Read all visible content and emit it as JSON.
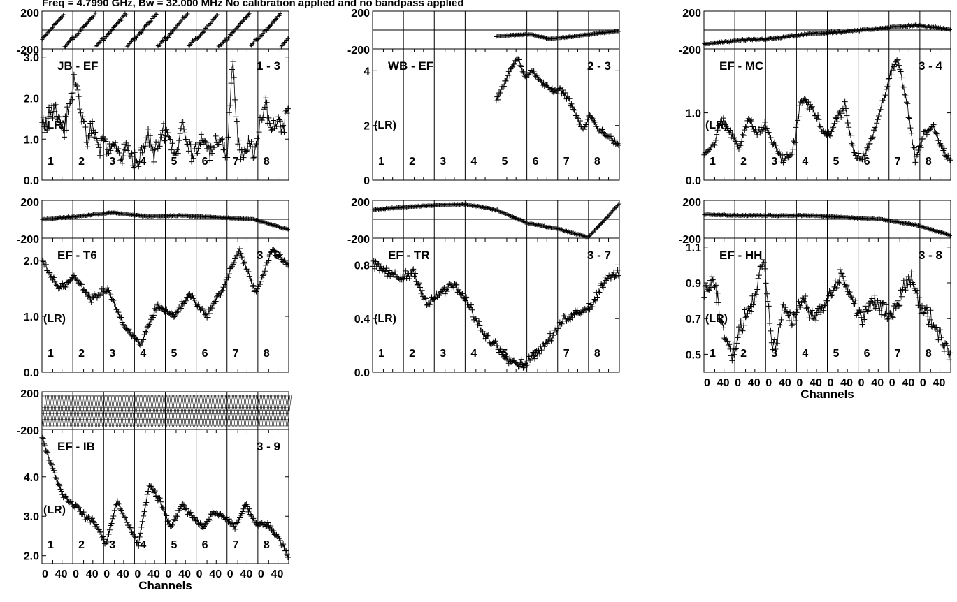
{
  "header": {
    "title": "Freq = 4.7990 GHz, Bw = 32.000 MHz   No calibration applied and no bandpass applied"
  },
  "chart_data": {
    "type": "scatter",
    "xlabel": "Channels",
    "x_tick_labels": [
      "0",
      "40"
    ],
    "x_tick_values": [
      0,
      40
    ],
    "subbands": [
      "1",
      "2",
      "3",
      "4",
      "5",
      "6",
      "7",
      "8"
    ],
    "channels_per_subband": 64,
    "polarization_label": "(LR)",
    "phase_ylim": [
      -200,
      200
    ],
    "phase_ticks": [
      "200",
      "-200"
    ],
    "baselines": [
      {
        "name": "JB - EF",
        "id": "1 - 3",
        "amp_ylim": [
          0,
          3.2
        ],
        "amp_ticks": [
          {
            "v": 0.0,
            "t": "0.0"
          },
          {
            "v": 1.0,
            "t": "1.0"
          },
          {
            "v": 2.0,
            "t": "2.0"
          },
          {
            "v": 3.0,
            "t": "3.0"
          }
        ],
        "amp_profile": [
          1.3,
          1.6,
          1.8,
          1.5,
          1.2,
          1.9,
          2.6,
          1.6,
          0.9,
          1.3,
          0.8,
          1.0,
          0.7,
          0.9,
          0.5,
          0.8,
          0.6,
          0.4,
          0.7,
          1.1,
          0.6,
          1.0,
          1.3,
          0.9,
          0.6,
          1.4,
          0.8,
          0.7,
          0.9,
          1.1,
          0.6,
          0.8,
          1.1,
          0.5,
          3.0,
          0.8,
          0.5,
          0.9,
          0.7,
          1.3,
          1.9,
          1.2,
          1.5,
          1.3,
          1.8
        ],
        "amp_noise": 0.35,
        "phase_mode": "wrap",
        "phase_start": -100,
        "phase_slope": 6.0,
        "phase_noise": 20,
        "phase_coverage": [
          0,
          8
        ]
      },
      {
        "name": "WB - EF",
        "id": "2 - 3",
        "amp_ylim": [
          0,
          4.8
        ],
        "amp_ticks": [
          {
            "v": 0,
            "t": "0"
          },
          {
            "v": 2,
            "t": "2"
          },
          {
            "v": 4,
            "t": "4"
          }
        ],
        "amp_profile": [
          2.9,
          3.5,
          4.0,
          4.5,
          3.8,
          4.0,
          3.6,
          3.5,
          3.2,
          3.3,
          3.0,
          2.4,
          1.8,
          2.4,
          1.9,
          1.7,
          1.5,
          1.2
        ],
        "amp_noise": 0.15,
        "amp_coverage": [
          4,
          8
        ],
        "phase_mode": "drift",
        "phase_start": -70,
        "phase_slope": 0.2,
        "phase_noise": 8,
        "phase_coverage": [
          4,
          8
        ],
        "phase_profile": [
          -65,
          -55,
          -45,
          -95,
          -75,
          -55,
          -30,
          -10
        ]
      },
      {
        "name": "EF - MC",
        "id": "3 - 4",
        "amp_ylim": [
          0,
          1.95
        ],
        "amp_ticks": [
          {
            "v": 0.0,
            "t": "0.0"
          },
          {
            "v": 1.0,
            "t": "1.0"
          }
        ],
        "amp_profile": [
          0.4,
          0.5,
          0.9,
          0.7,
          0.5,
          0.9,
          0.7,
          0.8,
          0.5,
          0.3,
          0.4,
          1.2,
          1.1,
          0.9,
          0.6,
          0.9,
          1.1,
          0.4,
          0.3,
          0.6,
          1.0,
          1.5,
          1.8,
          1.2,
          0.3,
          0.7,
          0.8,
          0.5,
          0.3
        ],
        "amp_noise": 0.1,
        "phase_mode": "drift",
        "phase_start": -150,
        "phase_noise": 15,
        "phase_coverage": [
          0,
          8
        ],
        "phase_profile": [
          -150,
          -110,
          -90,
          -40,
          -20,
          20,
          50,
          10
        ]
      },
      {
        "name": "EF - T6",
        "id": "3 - 6",
        "amp_ylim": [
          0,
          2.4
        ],
        "amp_ticks": [
          {
            "v": 0.0,
            "t": "0.0"
          },
          {
            "v": 1.0,
            "t": "1.0"
          },
          {
            "v": 2.0,
            "t": "2.0"
          }
        ],
        "amp_profile": [
          2.0,
          1.5,
          1.7,
          1.3,
          1.5,
          0.8,
          0.5,
          1.2,
          1.0,
          1.4,
          1.0,
          1.5,
          2.2,
          1.4,
          2.2,
          1.9
        ],
        "amp_noise": 0.08,
        "phase_mode": "drift",
        "phase_start": 0,
        "phase_noise": 8,
        "phase_coverage": [
          0,
          8
        ],
        "phase_profile": [
          0,
          30,
          70,
          30,
          40,
          20,
          0,
          -110
        ]
      },
      {
        "name": "EF - TR",
        "id": "3 - 7",
        "amp_ylim": [
          0,
          1.0
        ],
        "amp_ticks": [
          {
            "v": 0.0,
            "t": "0.0"
          },
          {
            "v": 0.4,
            "t": "0.4"
          },
          {
            "v": 0.8,
            "t": "0.8"
          }
        ],
        "amp_profile": [
          0.8,
          0.75,
          0.7,
          0.75,
          0.5,
          0.6,
          0.65,
          0.5,
          0.3,
          0.2,
          0.1,
          0.05,
          0.15,
          0.25,
          0.4,
          0.45,
          0.5,
          0.7,
          0.75
        ],
        "amp_noise": 0.05,
        "phase_mode": "drift",
        "phase_start": 90,
        "phase_noise": 10,
        "phase_coverage": [
          0,
          8
        ],
        "phase_profile": [
          100,
          130,
          150,
          160,
          100,
          -40,
          -100,
          -190,
          160
        ]
      },
      {
        "name": "EF - HH",
        "id": "3 - 8",
        "amp_ylim": [
          0.4,
          1.15
        ],
        "amp_ticks": [
          {
            "v": 0.5,
            "t": "0.5"
          },
          {
            "v": 0.7,
            "t": "0.7"
          },
          {
            "v": 0.9,
            "t": "0.9"
          },
          {
            "v": 1.1,
            "t": "1.1"
          }
        ],
        "amp_profile": [
          0.85,
          0.9,
          0.6,
          0.5,
          0.7,
          0.8,
          1.05,
          0.5,
          0.75,
          0.7,
          0.8,
          0.7,
          0.75,
          0.85,
          0.95,
          0.8,
          0.7,
          0.8,
          0.75,
          0.7,
          0.85,
          0.95,
          0.75,
          0.7,
          0.6,
          0.5
        ],
        "amp_noise": 0.07,
        "phase_mode": "drift",
        "phase_start": 50,
        "phase_noise": 10,
        "phase_coverage": [
          0,
          8
        ],
        "phase_profile": [
          50,
          40,
          40,
          40,
          20,
          0,
          -60,
          -170
        ]
      },
      {
        "name": "EF - IB",
        "id": "3 - 9",
        "amp_ylim": [
          1.8,
          5.2
        ],
        "amp_ticks": [
          {
            "v": 2.0,
            "t": "2.0"
          },
          {
            "v": 3.0,
            "t": "3.0"
          },
          {
            "v": 4.0,
            "t": "4.0"
          }
        ],
        "amp_profile": [
          5.0,
          4.2,
          3.5,
          3.3,
          3.0,
          2.8,
          2.3,
          3.4,
          2.8,
          2.3,
          3.8,
          3.4,
          2.7,
          3.3,
          3.0,
          2.7,
          3.1,
          3.0,
          2.7,
          3.3,
          2.8,
          2.8,
          2.5,
          2.0
        ],
        "amp_noise": 0.1,
        "phase_mode": "dense",
        "phase_noise": 0,
        "phase_coverage": [
          0,
          8
        ]
      }
    ]
  }
}
